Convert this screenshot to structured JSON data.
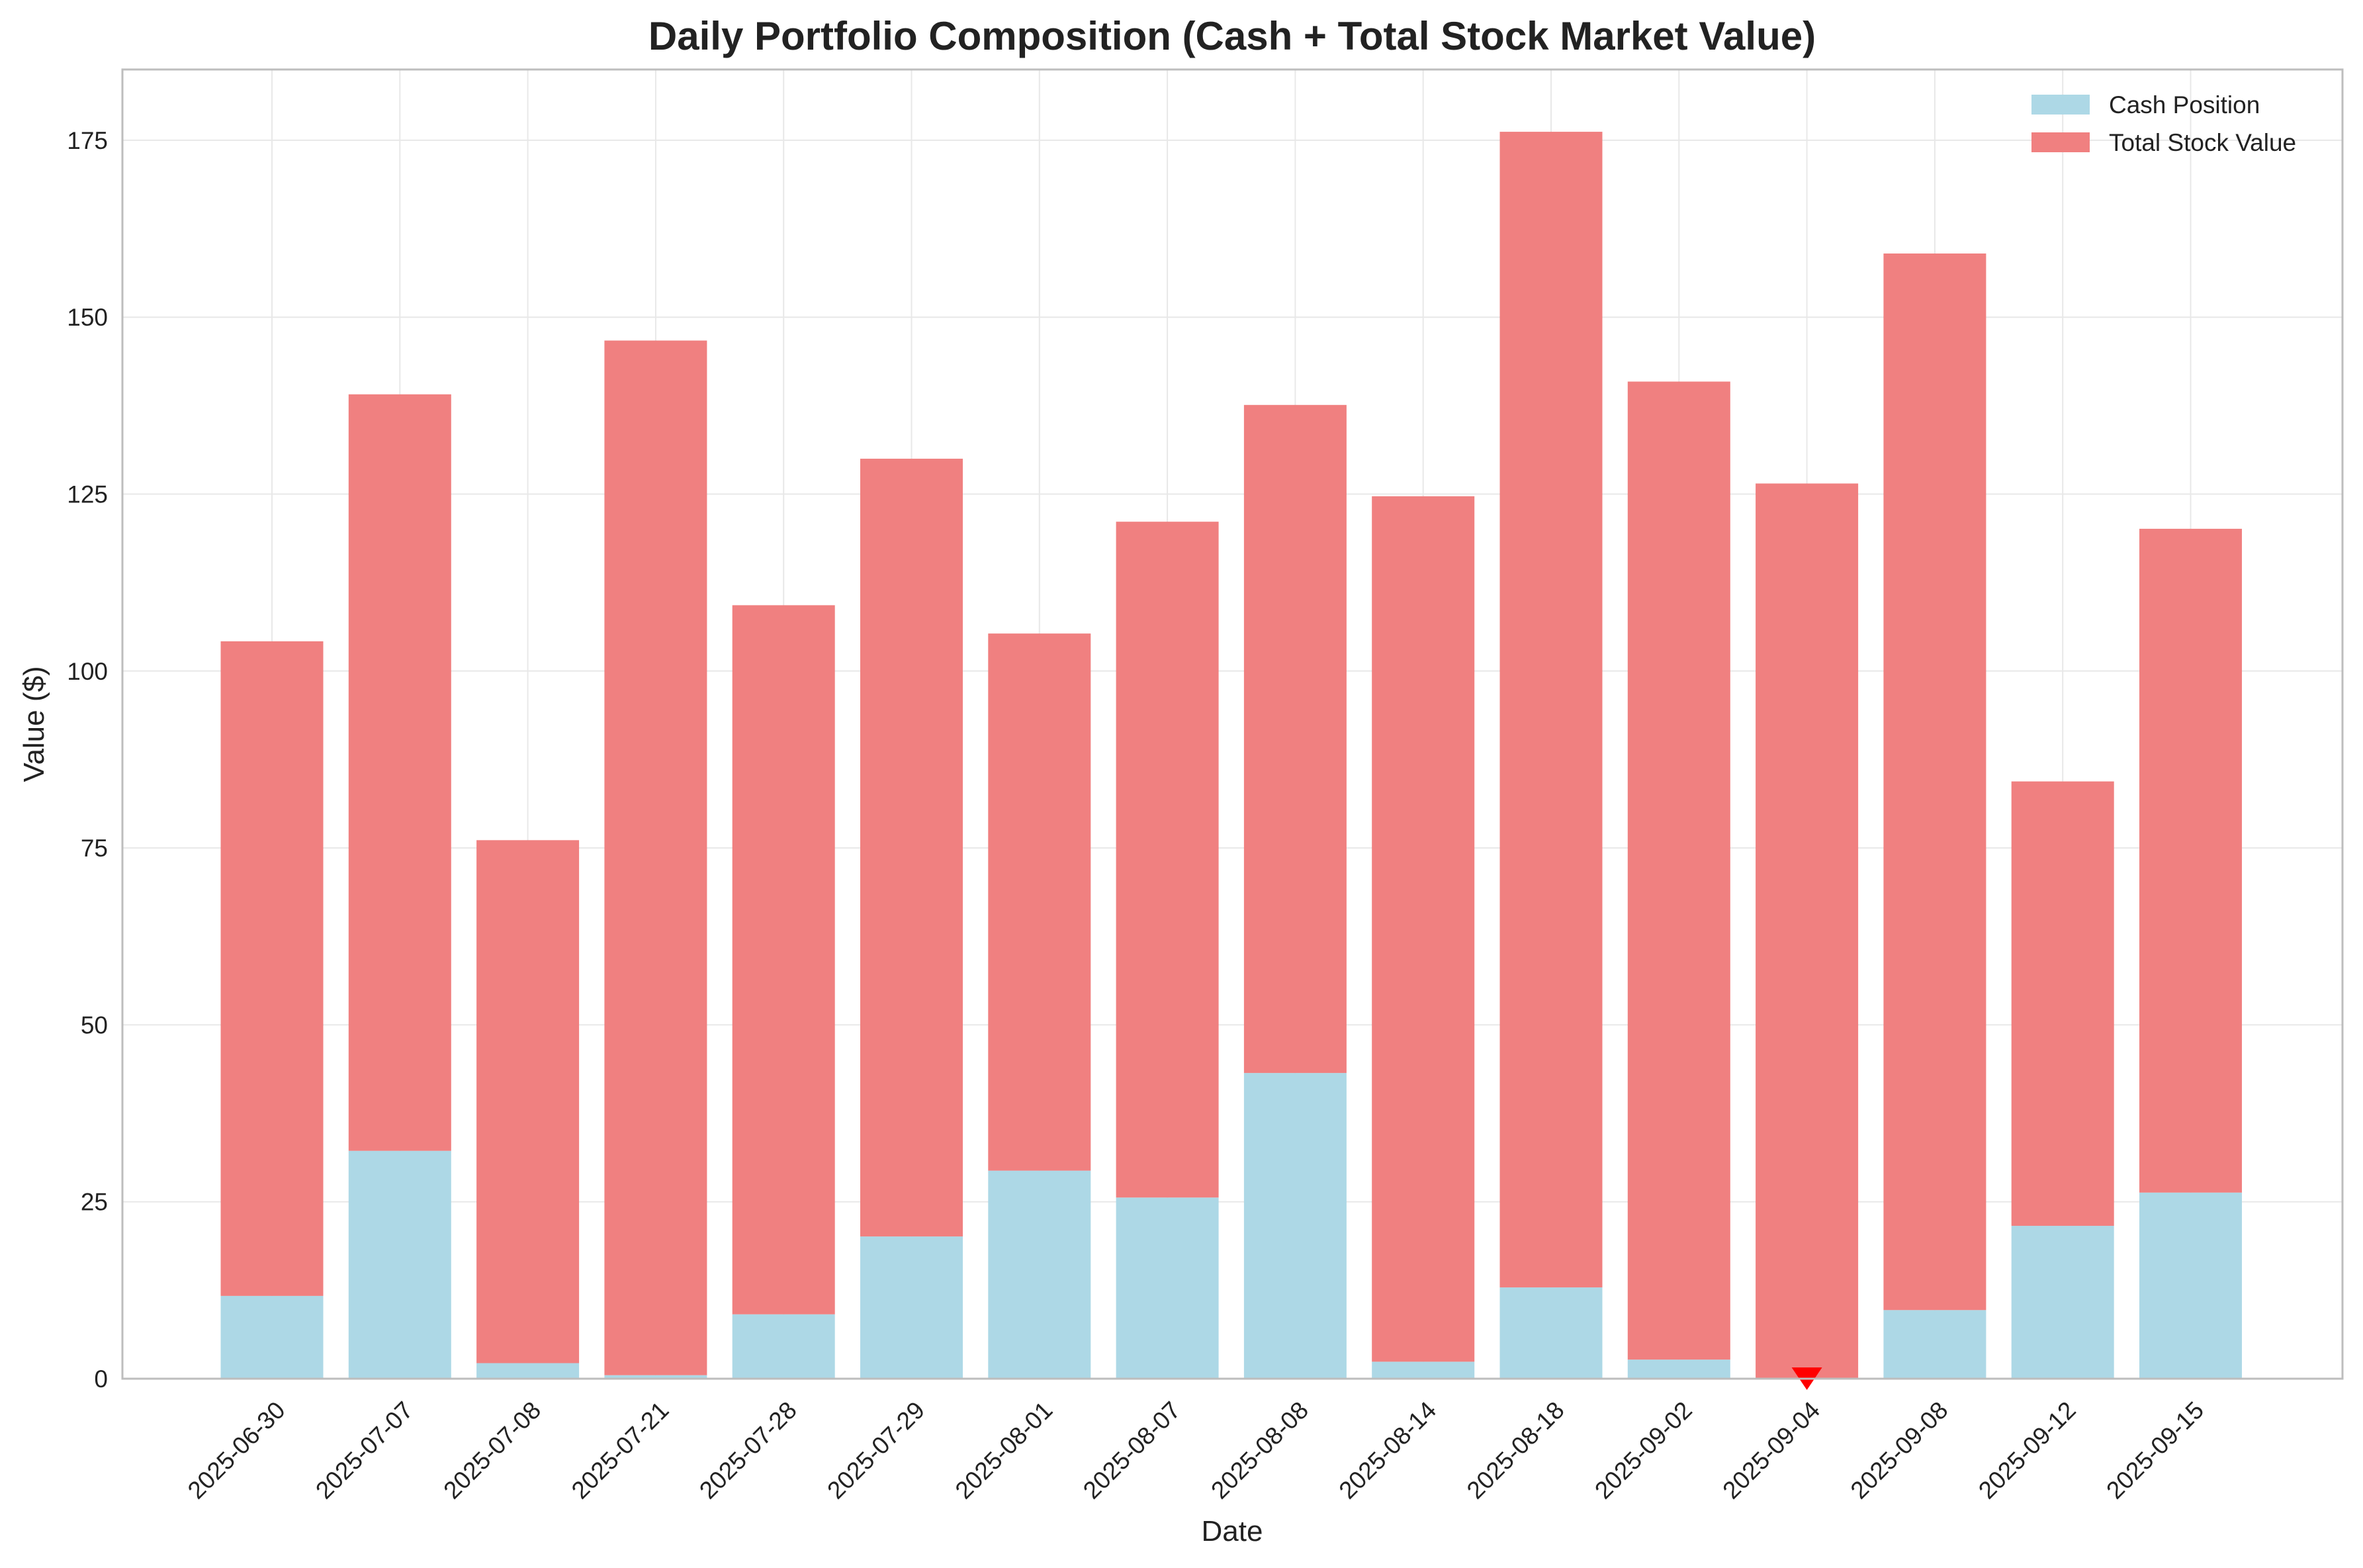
{
  "chart_data": {
    "type": "bar",
    "stacked": true,
    "title": "Daily Portfolio Composition (Cash + Total Stock Market Value)",
    "xlabel": "Date",
    "ylabel": "Value ($)",
    "ylim": [
      0,
      185
    ],
    "yticks": [
      0,
      25,
      50,
      75,
      100,
      125,
      150,
      175
    ],
    "grid": true,
    "legend_position": "top-right",
    "categories": [
      "2025-06-30",
      "2025-07-07",
      "2025-07-08",
      "2025-07-21",
      "2025-07-28",
      "2025-07-29",
      "2025-08-01",
      "2025-08-07",
      "2025-08-08",
      "2025-08-14",
      "2025-08-18",
      "2025-09-02",
      "2025-09-04",
      "2025-09-08",
      "2025-09-12",
      "2025-09-15"
    ],
    "series": [
      {
        "name": "Cash Position",
        "color": "#add8e6",
        "values": [
          11.7,
          32.2,
          2.2,
          0.5,
          9.1,
          20.1,
          29.4,
          25.6,
          43.2,
          2.4,
          12.9,
          2.7,
          0.0,
          9.7,
          21.6,
          26.3
        ]
      },
      {
        "name": "Total Stock Value",
        "color": "#f08080",
        "values": [
          92.5,
          106.9,
          73.9,
          146.2,
          100.2,
          109.9,
          75.9,
          95.5,
          94.4,
          122.3,
          163.3,
          138.2,
          126.5,
          149.3,
          62.8,
          93.8
        ]
      }
    ],
    "annotations": [
      {
        "type": "marker",
        "shape": "triangle-down",
        "category": "2025-09-04",
        "y": 0,
        "color": "#ff0000"
      }
    ]
  }
}
